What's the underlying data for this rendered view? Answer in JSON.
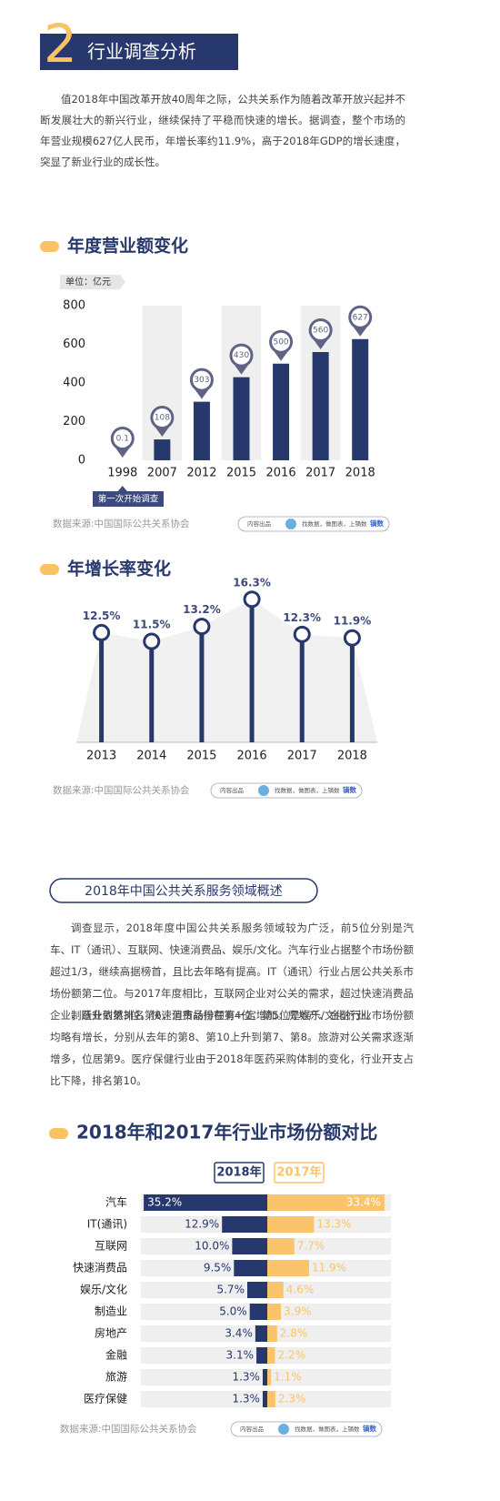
{
  "header": {
    "number": "2",
    "title": "行业调查分析"
  },
  "intro": "值2018年中国改革开放40周年之际，公共关系作为随着改革开放兴起并不断发展壮大的新兴行业，继续保持了平稳而快速的增长。据调查，整个市场的年营业规模627亿人民币，年增长率约11.9%，高于2018年GDP的增长速度，突显了新业行业的成长性。",
  "overview": {
    "title": "2018年中国公共关系服务领域概述",
    "paragraphs": [
      "调查显示，2018年度中国公共关系服务领域较为广泛，前5位分别是汽车、IT（通讯）、互联网、快速消费品、娱乐/文化。汽车行业占据整个市场份额超过1/3，继续高据榜首，且比去年略有提高。IT（通讯）行业占居公共关系市场份额第二位。与2017年度相比，互联网企业对公关的需求，超过快速消费品企业，跃升到第3位。快速消费品排在第4位，第5位是娱乐/文化行业。",
      "制造业依然排名第6，但市场份额有一定增加。房地产、金融行业市场份额均略有增长，分别从去年的第8、第10上升到第7、第8。旅游对公关需求逐渐增多，位居第9。医疗保健行业由于2018年医药采购体制的变化，行业开支占比下降，排名第10。"
    ]
  },
  "credit": {
    "by": "内容出品",
    "slogan": "找数据，做图表，上镝数",
    "brand": "镝数"
  },
  "chart_data": [
    {
      "type": "bar",
      "title": "年度营业额变化",
      "unit": "单位：亿元",
      "categories": [
        "1998",
        "2007",
        "2012",
        "2015",
        "2016",
        "2017",
        "2018"
      ],
      "values": [
        0.1,
        108,
        303,
        430,
        500,
        560,
        627
      ],
      "color": "#27386c",
      "ylim": [
        0,
        800
      ],
      "yticks": [
        0,
        200,
        400,
        600,
        800
      ],
      "annotation": "第一次开始调查",
      "source": "数据来源:中国国际公共关系协会"
    },
    {
      "type": "lollipop",
      "title": "年增长率变化",
      "categories": [
        "2013",
        "2014",
        "2015",
        "2016",
        "2017",
        "2018"
      ],
      "values": [
        12.5,
        11.5,
        13.2,
        16.3,
        12.3,
        11.9
      ],
      "value_labels": [
        "12.5%",
        "11.5%",
        "13.2%",
        "16.3%",
        "12.3%",
        "11.9%"
      ],
      "color": "#27386c",
      "ylim": [
        0,
        17
      ],
      "source": "数据来源:中国国际公共关系协会"
    },
    {
      "type": "butterfly",
      "title": "2018年和2017年行业市场份额对比",
      "categories": [
        "汽车",
        "IT(通讯)",
        "互联网",
        "快速消费品",
        "娱乐/文化",
        "制造业",
        "房地产",
        "金融",
        "旅游",
        "医疗保健"
      ],
      "series": [
        {
          "name": "2018年",
          "color": "#27386c",
          "values": [
            35.2,
            12.9,
            10.0,
            9.5,
            5.7,
            5.0,
            3.4,
            3.1,
            1.3,
            1.3
          ],
          "value_labels": [
            "35.2%",
            "12.9%",
            "10.0%",
            "9.5%",
            "5.7%",
            "5.0%",
            "3.4%",
            "3.1%",
            "1.3%",
            "1.3%"
          ]
        },
        {
          "name": "2017年",
          "color": "#fcc46a",
          "values": [
            33.4,
            13.3,
            7.7,
            11.9,
            4.6,
            3.9,
            2.8,
            2.2,
            1.1,
            2.3
          ],
          "value_labels": [
            "33.4%",
            "13.3%",
            "7.7%",
            "11.9%",
            "4.6%",
            "3.9%",
            "2.8%",
            "2.2%",
            "1.1%",
            "2.3%"
          ]
        }
      ],
      "xlim": [
        0,
        36
      ],
      "source": "数据来源:中国国际公共关系协会"
    }
  ]
}
